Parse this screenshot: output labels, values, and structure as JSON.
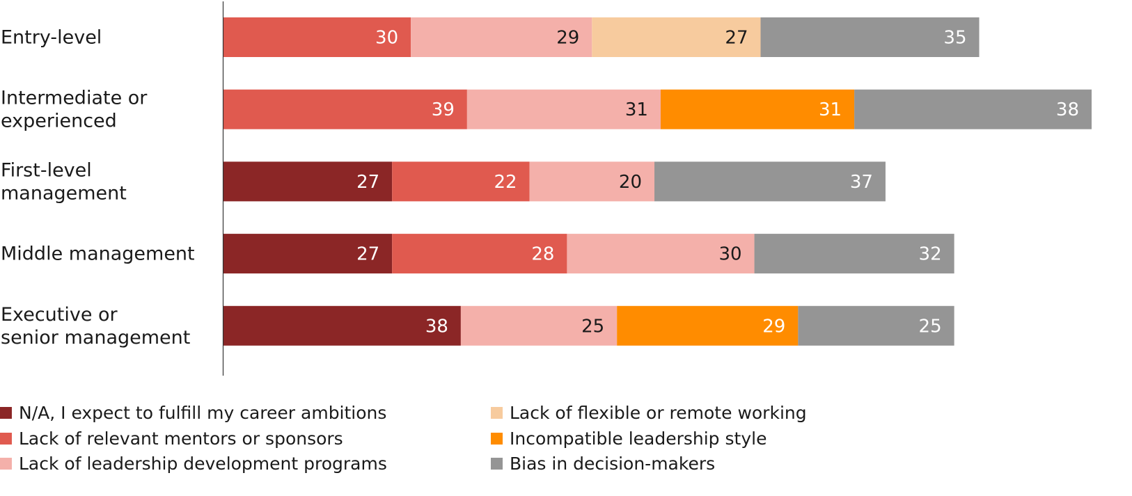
{
  "chart_data": {
    "type": "bar",
    "orientation": "horizontal",
    "stacked": true,
    "title": "",
    "xlabel": "",
    "ylabel": "",
    "grid": false,
    "legend_position": "bottom",
    "categories": [
      "Entry-level",
      "Intermediate or experienced",
      "First-level management",
      "Middle management",
      "Executive or senior management"
    ],
    "category_lines": [
      [
        "Entry-level"
      ],
      [
        "Intermediate or",
        "experienced"
      ],
      [
        "First-level",
        "management"
      ],
      [
        "Middle management"
      ],
      [
        "Executive or",
        "senior management"
      ]
    ],
    "series": [
      {
        "name": "N/A, I expect to fulfill my career ambitions",
        "color": "#8B2626",
        "label_color": "#ffffff",
        "values": [
          null,
          null,
          27,
          27,
          38
        ]
      },
      {
        "name": "Lack of relevant mentors or sponsors",
        "color": "#E05A4F",
        "label_color": "#ffffff",
        "values": [
          30,
          39,
          22,
          28,
          null
        ]
      },
      {
        "name": "Lack of leadership development programs",
        "color": "#F4B0AA",
        "label_color": "#1a1a1a",
        "values": [
          29,
          31,
          20,
          30,
          25
        ]
      },
      {
        "name": "Lack of flexible or remote working",
        "color": "#F7CB9E",
        "label_color": "#1a1a1a",
        "values": [
          27,
          null,
          null,
          null,
          null
        ]
      },
      {
        "name": "Incompatible leadership style",
        "color": "#FF8C00",
        "label_color": "#ffffff",
        "values": [
          null,
          31,
          null,
          null,
          29
        ]
      },
      {
        "name": "Bias in decision-makers",
        "color": "#959595",
        "label_color": "#ffffff",
        "values": [
          35,
          38,
          37,
          32,
          25
        ]
      }
    ],
    "xlim": [
      0,
      139
    ]
  },
  "legend": {
    "left_column": [
      0,
      1,
      2
    ],
    "right_column": [
      3,
      4,
      5
    ]
  }
}
